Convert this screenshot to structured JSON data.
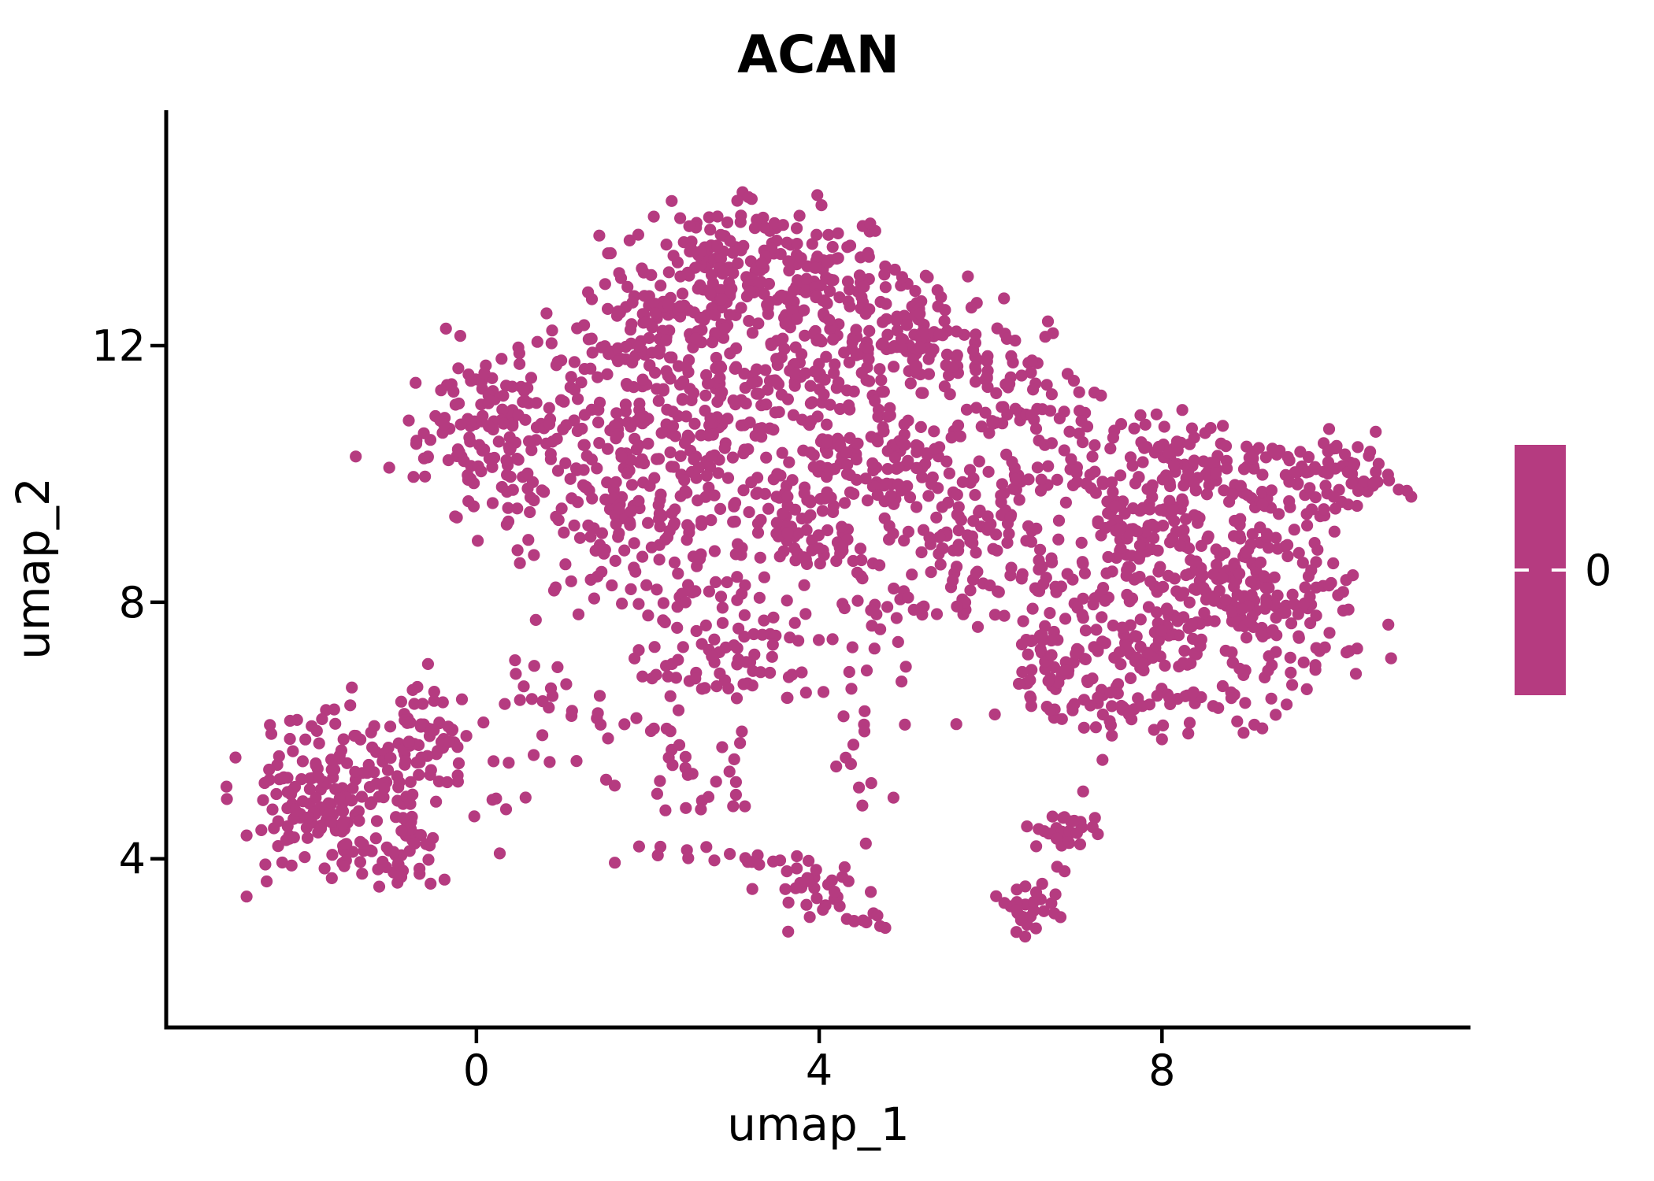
{
  "page": {
    "background": "#ffffff"
  },
  "chart_data": {
    "type": "scatter",
    "title": "ACAN",
    "xlabel": "umap_1",
    "ylabel": "umap_2",
    "xticks": [
      "0",
      "4",
      "8"
    ],
    "xtick_values": [
      0,
      4,
      8
    ],
    "yticks": [
      "12",
      "8",
      "4"
    ],
    "ytick_values": [
      12,
      8,
      4
    ],
    "xlim": [
      -3.62,
      11.6
    ],
    "ylim": [
      1.37,
      15.67
    ],
    "grid": false,
    "legend_position": "right",
    "point_color": "#B53B80",
    "axis_color": "#000000",
    "background_color": "#ffffff",
    "point_radius_px": 7.6,
    "colorbar": {
      "tick_labels": [
        "0"
      ],
      "color": "#B53B80",
      "tick_color": "#ffffff"
    },
    "series_note": "single expression level (0) feature plot on UMAP embedding",
    "clusters": [
      {
        "t": "g",
        "x": -1.35,
        "y": 5.05,
        "sx": 0.55,
        "sy": 0.65,
        "n": 140
      },
      {
        "t": "g",
        "x": -1.95,
        "y": 4.55,
        "sx": 0.33,
        "sy": 0.42,
        "n": 45
      },
      {
        "t": "g",
        "x": -0.62,
        "y": 5.95,
        "sx": 0.3,
        "sy": 0.38,
        "n": 40
      },
      {
        "t": "g",
        "x": -1.05,
        "y": 3.95,
        "sx": 0.35,
        "sy": 0.22,
        "n": 22
      },
      {
        "t": "u",
        "x0": -2.45,
        "x1": -0.3,
        "y0": 4.2,
        "y1": 6.2,
        "n": 40
      },
      {
        "t": "l",
        "x0": 0.05,
        "y0": 5.3,
        "x1": 1.75,
        "y1": 6.2,
        "n": 22,
        "j": 0.35
      },
      {
        "t": "g",
        "x": 0.75,
        "y": 6.7,
        "sx": 0.25,
        "sy": 0.3,
        "n": 12
      },
      {
        "t": "g",
        "x": 1.55,
        "y": 11.7,
        "sx": 0.5,
        "sy": 0.55,
        "n": 60
      },
      {
        "t": "g",
        "x": 2.3,
        "y": 12.7,
        "sx": 0.5,
        "sy": 0.55,
        "n": 85
      },
      {
        "t": "g",
        "x": 3.05,
        "y": 13.45,
        "sx": 0.55,
        "sy": 0.5,
        "n": 105
      },
      {
        "t": "g",
        "x": 3.85,
        "y": 13.05,
        "sx": 0.5,
        "sy": 0.5,
        "n": 90
      },
      {
        "t": "g",
        "x": 4.6,
        "y": 12.45,
        "sx": 0.5,
        "sy": 0.5,
        "n": 75
      },
      {
        "t": "g",
        "x": 5.3,
        "y": 12.0,
        "sx": 0.45,
        "sy": 0.45,
        "n": 55
      },
      {
        "t": "g",
        "x": 6.0,
        "y": 11.5,
        "sx": 0.4,
        "sy": 0.45,
        "n": 40
      },
      {
        "t": "l",
        "x0": 6.3,
        "y0": 11.9,
        "x1": 7.2,
        "y1": 10.3,
        "n": 18,
        "j": 0.3
      },
      {
        "t": "g",
        "x": 0.05,
        "y": 11.0,
        "sx": 0.42,
        "sy": 0.5,
        "n": 70
      },
      {
        "t": "g",
        "x": -0.1,
        "y": 10.15,
        "sx": 0.33,
        "sy": 0.38,
        "n": 30
      },
      {
        "t": "g",
        "x": 0.9,
        "y": 10.1,
        "sx": 0.65,
        "sy": 0.75,
        "n": 85
      },
      {
        "t": "g",
        "x": 1.7,
        "y": 9.3,
        "sx": 0.55,
        "sy": 0.65,
        "n": 65
      },
      {
        "t": "g",
        "x": 2.75,
        "y": 11.3,
        "sx": 0.75,
        "sy": 0.7,
        "n": 95
      },
      {
        "t": "g",
        "x": 3.4,
        "y": 10.1,
        "sx": 0.75,
        "sy": 0.75,
        "n": 85
      },
      {
        "t": "g",
        "x": 2.1,
        "y": 10.75,
        "sx": 0.55,
        "sy": 0.55,
        "n": 50
      },
      {
        "t": "g",
        "x": 4.05,
        "y": 11.5,
        "sx": 0.55,
        "sy": 0.5,
        "n": 55
      },
      {
        "t": "g",
        "x": 2.25,
        "y": 8.4,
        "sx": 0.33,
        "sy": 0.85,
        "n": 55
      },
      {
        "t": "g",
        "x": 3.1,
        "y": 7.7,
        "sx": 0.5,
        "sy": 0.55,
        "n": 45
      },
      {
        "t": "g",
        "x": 2.9,
        "y": 6.9,
        "sx": 0.45,
        "sy": 0.4,
        "n": 30
      },
      {
        "t": "u",
        "x0": 1.95,
        "x1": 3.15,
        "y0": 4.7,
        "y1": 6.1,
        "n": 26
      },
      {
        "t": "g",
        "x": 4.65,
        "y": 10.25,
        "sx": 0.5,
        "sy": 0.45,
        "n": 105
      },
      {
        "t": "g",
        "x": 5.6,
        "y": 9.5,
        "sx": 0.55,
        "sy": 0.65,
        "n": 60
      },
      {
        "t": "g",
        "x": 6.45,
        "y": 10.55,
        "sx": 0.45,
        "sy": 0.55,
        "n": 45
      },
      {
        "t": "u",
        "x0": 4.4,
        "x1": 6.6,
        "y0": 7.7,
        "y1": 9.2,
        "n": 70
      },
      {
        "t": "u",
        "x0": 3.3,
        "x1": 4.4,
        "y0": 8.6,
        "y1": 9.8,
        "n": 40
      },
      {
        "t": "g",
        "x": 7.6,
        "y": 9.7,
        "sx": 0.55,
        "sy": 0.55,
        "n": 75
      },
      {
        "t": "g",
        "x": 8.45,
        "y": 10.05,
        "sx": 0.5,
        "sy": 0.45,
        "n": 75
      },
      {
        "t": "g",
        "x": 9.3,
        "y": 9.85,
        "sx": 0.45,
        "sy": 0.45,
        "n": 55
      },
      {
        "t": "g",
        "x": 8.0,
        "y": 8.6,
        "sx": 0.65,
        "sy": 0.6,
        "n": 100
      },
      {
        "t": "g",
        "x": 9.0,
        "y": 8.3,
        "sx": 0.55,
        "sy": 0.55,
        "n": 85
      },
      {
        "t": "g",
        "x": 8.35,
        "y": 7.35,
        "sx": 0.65,
        "sy": 0.5,
        "n": 85
      },
      {
        "t": "g",
        "x": 9.65,
        "y": 7.8,
        "sx": 0.45,
        "sy": 0.45,
        "n": 55
      },
      {
        "t": "g",
        "x": 7.05,
        "y": 7.7,
        "sx": 0.45,
        "sy": 0.6,
        "n": 55
      },
      {
        "t": "g",
        "x": 7.35,
        "y": 6.45,
        "sx": 0.45,
        "sy": 0.4,
        "n": 35
      },
      {
        "t": "g",
        "x": 10.25,
        "y": 10.0,
        "sx": 0.27,
        "sy": 0.3,
        "n": 40
      },
      {
        "t": "u",
        "x0": 6.4,
        "x1": 9.5,
        "y0": 5.95,
        "y1": 6.6,
        "n": 38
      },
      {
        "t": "u",
        "x0": 6.3,
        "x1": 7.0,
        "y0": 6.7,
        "y1": 7.6,
        "n": 22
      },
      {
        "t": "l",
        "x0": 4.55,
        "y0": 7.9,
        "x1": 4.5,
        "y1": 4.75,
        "n": 26,
        "j": 0.22
      },
      {
        "t": "l",
        "x0": 2.3,
        "y0": 4.05,
        "x1": 3.85,
        "y1": 4.0,
        "n": 15,
        "j": 0.09
      },
      {
        "t": "g",
        "x": 4.0,
        "y": 3.5,
        "sx": 0.3,
        "sy": 0.3,
        "n": 30
      },
      {
        "t": "l",
        "x0": 4.3,
        "y0": 3.25,
        "x1": 4.75,
        "y1": 3.0,
        "n": 8,
        "j": 0.12
      },
      {
        "t": "l",
        "x0": 1.7,
        "y0": 3.95,
        "x1": 2.1,
        "y1": 4.1,
        "n": 3,
        "j": 0.1
      },
      {
        "t": "g",
        "x": 6.85,
        "y": 4.5,
        "sx": 0.22,
        "sy": 0.17,
        "n": 24
      },
      {
        "t": "g",
        "x": 6.5,
        "y": 3.25,
        "sx": 0.16,
        "sy": 0.28,
        "n": 30
      }
    ],
    "extra_points": [
      [
        7.08,
        5.05
      ],
      [
        5.6,
        6.1
      ],
      [
        6.05,
        6.25
      ],
      [
        9.95,
        10.7
      ],
      [
        10.65,
        9.9
      ],
      [
        2.62,
        4.77
      ],
      [
        4.05,
        6.6
      ]
    ]
  }
}
